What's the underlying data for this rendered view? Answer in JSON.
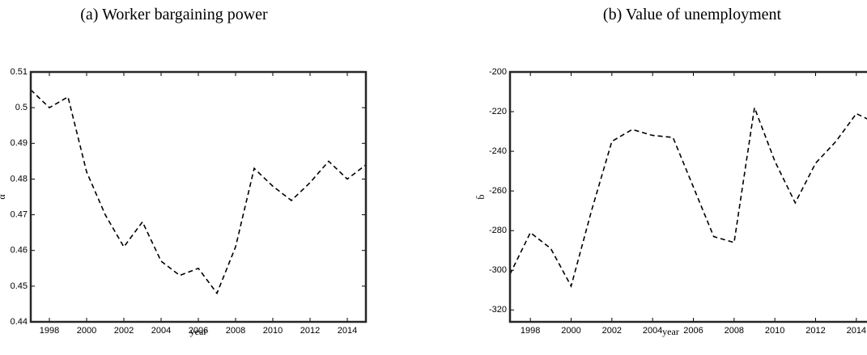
{
  "chart_data": [
    {
      "type": "line",
      "title": "(a) Worker bargaining power",
      "xlabel": "year",
      "ylabel": "α",
      "x": [
        1997,
        1998,
        1999,
        2000,
        2001,
        2002,
        2003,
        2004,
        2005,
        2006,
        2007,
        2008,
        2009,
        2010,
        2011,
        2012,
        2013,
        2014,
        2015
      ],
      "series": [
        {
          "name": "α",
          "color": "#000000",
          "values": [
            0.505,
            0.5,
            0.503,
            0.482,
            0.47,
            0.461,
            0.468,
            0.457,
            0.453,
            0.455,
            0.448,
            0.461,
            0.483,
            0.478,
            0.474,
            0.479,
            0.485,
            0.48,
            0.484
          ]
        }
      ],
      "xlim": [
        1997,
        2015
      ],
      "xticks": [
        1998,
        2000,
        2002,
        2004,
        2006,
        2008,
        2010,
        2012,
        2014
      ],
      "ylim": [
        0.44,
        0.51
      ],
      "yticks": [
        0.44,
        0.45,
        0.46,
        0.47,
        0.48,
        0.49,
        0.5,
        0.51
      ]
    },
    {
      "type": "line",
      "title": "(b) Value of unemployment",
      "xlabel": "year",
      "ylabel": "b̄",
      "x": [
        1997,
        1998,
        1999,
        2000,
        2001,
        2002,
        2003,
        2004,
        2005,
        2006,
        2007,
        2008,
        2009,
        2010,
        2011,
        2012,
        2013,
        2014,
        2015
      ],
      "series": [
        {
          "name": "b̄",
          "color": "#000000",
          "values": [
            -302,
            -281,
            -289,
            -308,
            -270,
            -235,
            -229,
            -232,
            -233,
            -258,
            -283,
            -286,
            -218,
            -245,
            -266,
            -246,
            -235,
            -221,
            -226
          ]
        }
      ],
      "xlim": [
        1997,
        2015
      ],
      "xticks": [
        1998,
        2000,
        2002,
        2004,
        2006,
        2008,
        2010,
        2012,
        2014
      ],
      "ylim": [
        -326,
        -200
      ],
      "yticks": [
        -320,
        -300,
        -280,
        -260,
        -240,
        -220,
        -200
      ]
    }
  ]
}
